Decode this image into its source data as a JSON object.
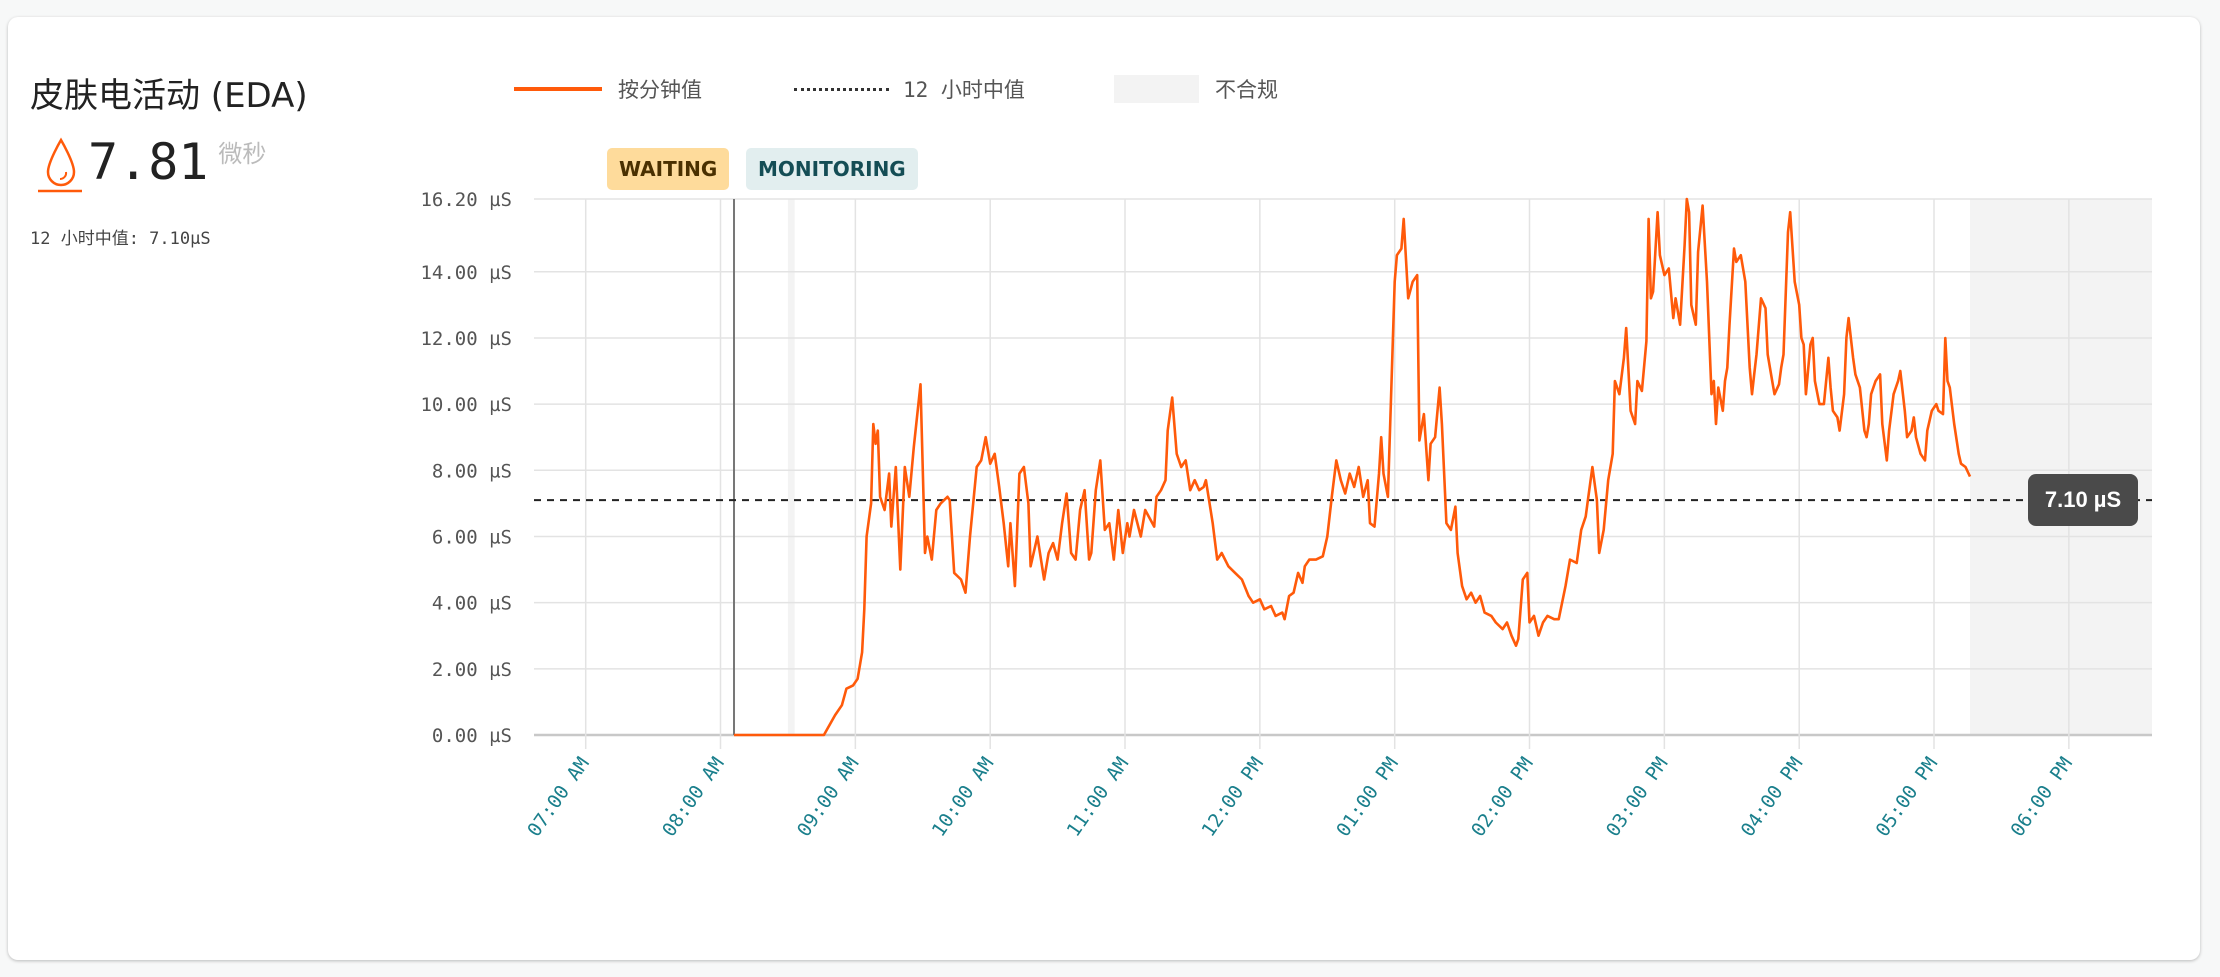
{
  "card": {
    "title": "皮肤电活动 (EDA)",
    "current_value": "7.81",
    "unit": "微秒",
    "icon": "droplet-icon",
    "median_label": "12 小时中值: 7.10μS"
  },
  "legend": {
    "per_minute": "按分钟值",
    "median": "12 小时中值",
    "non_compliant": "不合规"
  },
  "badges": {
    "waiting": "WAITING",
    "monitoring": "MONITORING"
  },
  "colors": {
    "series": "#ff5a0a",
    "waiting_bg": "#fedb9b",
    "waiting_text": "#4a3000",
    "monitoring_bg": "#e2eeef",
    "monitoring_text": "#144d55",
    "non_compliant_bg": "#f3f3f3",
    "x_tick_text": "#1a7f8c"
  },
  "tooltip": "7.10 µS",
  "chart_data": {
    "type": "line",
    "xlim": [
      "06:37",
      "18:37"
    ],
    "ylim": [
      0,
      16.2
    ],
    "grid": true,
    "legend_placement": "top",
    "y_ticks": [
      "0.00 µS",
      "2.00 µS",
      "4.00 µS",
      "6.00 µS",
      "8.00 µS",
      "10.00 µS",
      "12.00 µS",
      "14.00 µS",
      "16.20 µS"
    ],
    "y_tick_values": [
      0,
      2,
      4,
      6,
      8,
      10,
      12,
      14,
      16.2
    ],
    "x_ticks": [
      "07:00 AM",
      "08:00 AM",
      "09:00 AM",
      "10:00 AM",
      "11:00 AM",
      "12:00 PM",
      "01:00 PM",
      "02:00 PM",
      "03:00 PM",
      "04:00 PM",
      "05:00 PM",
      "06:00 PM"
    ],
    "x_tick_values": [
      "07:00",
      "08:00",
      "09:00",
      "10:00",
      "11:00",
      "12:00",
      "13:00",
      "14:00",
      "15:00",
      "16:00",
      "17:00",
      "18:00"
    ],
    "median": 7.1,
    "marker_time": "08:06",
    "gap_band": [
      "08:30",
      "08:33"
    ],
    "non_compliant_range": [
      "17:16",
      "18:37"
    ],
    "series": [
      {
        "name": "按分钟值",
        "points": [
          [
            "08:06",
            0
          ],
          [
            "08:46",
            0
          ],
          [
            "08:51",
            0.6
          ],
          [
            "08:54",
            0.9
          ],
          [
            "08:56",
            1.4
          ],
          [
            "08:59",
            1.5
          ],
          [
            "09:01",
            1.7
          ],
          [
            "09:03",
            2.5
          ],
          [
            "09:04",
            3.8
          ],
          [
            "09:05",
            6.0
          ],
          [
            "09:07",
            7.0
          ],
          [
            "09:08",
            9.4
          ],
          [
            "09:09",
            8.8
          ],
          [
            "09:10",
            9.2
          ],
          [
            "09:11",
            7.2
          ],
          [
            "09:13",
            6.8
          ],
          [
            "09:15",
            7.9
          ],
          [
            "09:16",
            6.3
          ],
          [
            "09:18",
            8.1
          ],
          [
            "09:20",
            5.0
          ],
          [
            "09:22",
            8.1
          ],
          [
            "09:24",
            7.2
          ],
          [
            "09:26",
            8.7
          ],
          [
            "09:29",
            10.6
          ],
          [
            "09:31",
            5.5
          ],
          [
            "09:32",
            6.0
          ],
          [
            "09:34",
            5.3
          ],
          [
            "09:36",
            6.8
          ],
          [
            "09:38",
            7.0
          ],
          [
            "09:41",
            7.2
          ],
          [
            "09:42",
            7.1
          ],
          [
            "09:44",
            4.9
          ],
          [
            "09:47",
            4.7
          ],
          [
            "09:49",
            4.3
          ],
          [
            "09:51",
            6.0
          ],
          [
            "09:54",
            8.1
          ],
          [
            "09:56",
            8.3
          ],
          [
            "09:58",
            9.0
          ],
          [
            "10:00",
            8.2
          ],
          [
            "10:02",
            8.5
          ],
          [
            "10:04",
            7.5
          ],
          [
            "10:06",
            6.4
          ],
          [
            "10:08",
            5.1
          ],
          [
            "10:09",
            6.4
          ],
          [
            "10:11",
            4.5
          ],
          [
            "10:13",
            7.9
          ],
          [
            "10:15",
            8.1
          ],
          [
            "10:17",
            7.0
          ],
          [
            "10:18",
            5.1
          ],
          [
            "10:21",
            6.0
          ],
          [
            "10:24",
            4.7
          ],
          [
            "10:26",
            5.5
          ],
          [
            "10:28",
            5.8
          ],
          [
            "10:30",
            5.3
          ],
          [
            "10:32",
            6.4
          ],
          [
            "10:34",
            7.3
          ],
          [
            "10:36",
            5.5
          ],
          [
            "10:38",
            5.3
          ],
          [
            "10:40",
            6.8
          ],
          [
            "10:42",
            7.4
          ],
          [
            "10:44",
            5.3
          ],
          [
            "10:45",
            5.5
          ],
          [
            "10:47",
            7.4
          ],
          [
            "10:49",
            8.3
          ],
          [
            "10:51",
            6.2
          ],
          [
            "10:53",
            6.4
          ],
          [
            "10:55",
            5.3
          ],
          [
            "10:57",
            6.8
          ],
          [
            "10:59",
            5.5
          ],
          [
            "11:01",
            6.4
          ],
          [
            "11:02",
            6.0
          ],
          [
            "11:04",
            6.8
          ],
          [
            "11:07",
            6.0
          ],
          [
            "11:09",
            6.8
          ],
          [
            "11:13",
            6.3
          ],
          [
            "11:14",
            7.2
          ],
          [
            "11:16",
            7.4
          ],
          [
            "11:18",
            7.7
          ],
          [
            "11:19",
            9.2
          ],
          [
            "11:21",
            10.2
          ],
          [
            "11:23",
            8.5
          ],
          [
            "11:25",
            8.1
          ],
          [
            "11:27",
            8.3
          ],
          [
            "11:29",
            7.4
          ],
          [
            "11:31",
            7.7
          ],
          [
            "11:33",
            7.4
          ],
          [
            "11:35",
            7.5
          ],
          [
            "11:36",
            7.7
          ],
          [
            "11:39",
            6.4
          ],
          [
            "11:41",
            5.3
          ],
          [
            "11:43",
            5.5
          ],
          [
            "11:46",
            5.1
          ],
          [
            "11:49",
            4.9
          ],
          [
            "11:52",
            4.7
          ],
          [
            "11:55",
            4.2
          ],
          [
            "11:57",
            4.0
          ],
          [
            "12:00",
            4.1
          ],
          [
            "12:02",
            3.8
          ],
          [
            "12:05",
            3.9
          ],
          [
            "12:07",
            3.6
          ],
          [
            "12:10",
            3.7
          ],
          [
            "12:11",
            3.5
          ],
          [
            "12:13",
            4.2
          ],
          [
            "12:15",
            4.3
          ],
          [
            "12:17",
            4.9
          ],
          [
            "12:19",
            4.6
          ],
          [
            "12:20",
            5.1
          ],
          [
            "12:22",
            5.3
          ],
          [
            "12:25",
            5.3
          ],
          [
            "12:28",
            5.4
          ],
          [
            "12:30",
            6.0
          ],
          [
            "12:32",
            7.2
          ],
          [
            "12:34",
            8.3
          ],
          [
            "12:36",
            7.7
          ],
          [
            "12:38",
            7.3
          ],
          [
            "12:40",
            7.9
          ],
          [
            "12:42",
            7.5
          ],
          [
            "12:44",
            8.1
          ],
          [
            "12:46",
            7.2
          ],
          [
            "12:48",
            7.7
          ],
          [
            "12:49",
            6.4
          ],
          [
            "12:51",
            6.3
          ],
          [
            "12:53",
            7.9
          ],
          [
            "12:54",
            9.0
          ],
          [
            "12:55",
            7.9
          ],
          [
            "12:57",
            7.2
          ],
          [
            "12:58",
            9.4
          ],
          [
            "13:00",
            13.7
          ],
          [
            "13:01",
            14.5
          ],
          [
            "13:03",
            14.7
          ],
          [
            "13:04",
            15.6
          ],
          [
            "13:06",
            13.2
          ],
          [
            "13:08",
            13.7
          ],
          [
            "13:10",
            13.9
          ],
          [
            "13:11",
            8.9
          ],
          [
            "13:13",
            9.7
          ],
          [
            "13:15",
            7.7
          ],
          [
            "13:16",
            8.8
          ],
          [
            "13:18",
            9.0
          ],
          [
            "13:20",
            10.5
          ],
          [
            "13:21",
            9.4
          ],
          [
            "13:23",
            6.4
          ],
          [
            "13:25",
            6.2
          ],
          [
            "13:27",
            6.9
          ],
          [
            "13:28",
            5.5
          ],
          [
            "13:30",
            4.5
          ],
          [
            "13:32",
            4.1
          ],
          [
            "13:34",
            4.3
          ],
          [
            "13:36",
            4.0
          ],
          [
            "13:38",
            4.2
          ],
          [
            "13:40",
            3.7
          ],
          [
            "13:43",
            3.6
          ],
          [
            "13:45",
            3.4
          ],
          [
            "13:48",
            3.2
          ],
          [
            "13:50",
            3.4
          ],
          [
            "13:52",
            3.0
          ],
          [
            "13:54",
            2.7
          ],
          [
            "13:55",
            2.9
          ],
          [
            "13:57",
            4.7
          ],
          [
            "13:59",
            4.9
          ],
          [
            "14:00",
            3.4
          ],
          [
            "14:02",
            3.6
          ],
          [
            "14:04",
            3.0
          ],
          [
            "14:06",
            3.4
          ],
          [
            "14:08",
            3.6
          ],
          [
            "14:11",
            3.5
          ],
          [
            "14:13",
            3.5
          ],
          [
            "14:16",
            4.5
          ],
          [
            "14:18",
            5.3
          ],
          [
            "14:21",
            5.2
          ],
          [
            "14:23",
            6.2
          ],
          [
            "14:25",
            6.6
          ],
          [
            "14:26",
            7.1
          ],
          [
            "14:28",
            8.1
          ],
          [
            "14:30",
            7.1
          ],
          [
            "14:31",
            5.5
          ],
          [
            "14:33",
            6.2
          ],
          [
            "14:35",
            7.7
          ],
          [
            "14:37",
            8.5
          ],
          [
            "14:38",
            10.7
          ],
          [
            "14:40",
            10.3
          ],
          [
            "14:42",
            11.4
          ],
          [
            "14:43",
            12.3
          ],
          [
            "14:45",
            9.8
          ],
          [
            "14:47",
            9.4
          ],
          [
            "14:48",
            10.7
          ],
          [
            "14:50",
            10.4
          ],
          [
            "14:52",
            11.9
          ],
          [
            "14:53",
            15.6
          ],
          [
            "14:54",
            13.2
          ],
          [
            "14:55",
            13.4
          ],
          [
            "14:57",
            15.8
          ],
          [
            "14:58",
            14.5
          ],
          [
            "15:00",
            13.9
          ],
          [
            "15:02",
            14.1
          ],
          [
            "15:04",
            12.6
          ],
          [
            "15:05",
            13.2
          ],
          [
            "15:07",
            12.4
          ],
          [
            "15:09",
            14.8
          ],
          [
            "15:10",
            16.2
          ],
          [
            "15:11",
            15.8
          ],
          [
            "15:12",
            13.0
          ],
          [
            "15:14",
            12.4
          ],
          [
            "15:15",
            14.6
          ],
          [
            "15:17",
            16.0
          ],
          [
            "15:19",
            13.7
          ],
          [
            "15:21",
            10.3
          ],
          [
            "15:22",
            10.7
          ],
          [
            "15:23",
            9.4
          ],
          [
            "15:24",
            10.5
          ],
          [
            "15:26",
            9.8
          ],
          [
            "15:27",
            10.7
          ],
          [
            "15:28",
            11.1
          ],
          [
            "15:29",
            12.4
          ],
          [
            "15:31",
            14.7
          ],
          [
            "15:32",
            14.3
          ],
          [
            "15:34",
            14.5
          ],
          [
            "15:36",
            13.7
          ],
          [
            "15:38",
            11.1
          ],
          [
            "15:39",
            10.3
          ],
          [
            "15:40",
            10.9
          ],
          [
            "15:41",
            11.5
          ],
          [
            "15:43",
            13.2
          ],
          [
            "15:45",
            12.9
          ],
          [
            "15:46",
            11.5
          ],
          [
            "15:48",
            10.7
          ],
          [
            "15:49",
            10.3
          ],
          [
            "15:51",
            10.6
          ],
          [
            "15:52",
            11.1
          ],
          [
            "15:53",
            11.5
          ],
          [
            "15:55",
            15.2
          ],
          [
            "15:56",
            15.8
          ],
          [
            "15:58",
            13.7
          ],
          [
            "16:00",
            13.0
          ],
          [
            "16:01",
            12.0
          ],
          [
            "16:02",
            11.8
          ],
          [
            "16:03",
            10.3
          ],
          [
            "16:05",
            11.8
          ],
          [
            "16:06",
            12.0
          ],
          [
            "16:07",
            10.7
          ],
          [
            "16:09",
            10.0
          ],
          [
            "16:11",
            10.0
          ],
          [
            "16:13",
            11.4
          ],
          [
            "16:14",
            10.5
          ],
          [
            "16:15",
            9.8
          ],
          [
            "16:17",
            9.6
          ],
          [
            "16:18",
            9.2
          ],
          [
            "16:20",
            10.3
          ],
          [
            "16:21",
            12.0
          ],
          [
            "16:22",
            12.6
          ],
          [
            "16:24",
            11.4
          ],
          [
            "16:25",
            10.9
          ],
          [
            "16:27",
            10.5
          ],
          [
            "16:29",
            9.2
          ],
          [
            "16:30",
            9.0
          ],
          [
            "16:31",
            9.4
          ],
          [
            "16:32",
            10.3
          ],
          [
            "16:34",
            10.7
          ],
          [
            "16:36",
            10.9
          ],
          [
            "16:37",
            9.4
          ],
          [
            "16:39",
            8.3
          ],
          [
            "16:40",
            9.2
          ],
          [
            "16:42",
            10.3
          ],
          [
            "16:44",
            10.7
          ],
          [
            "16:45",
            11.0
          ],
          [
            "16:47",
            9.8
          ],
          [
            "16:48",
            9.0
          ],
          [
            "16:50",
            9.2
          ],
          [
            "16:51",
            9.6
          ],
          [
            "16:52",
            9.0
          ],
          [
            "16:54",
            8.5
          ],
          [
            "16:56",
            8.3
          ],
          [
            "16:57",
            9.2
          ],
          [
            "16:59",
            9.8
          ],
          [
            "17:01",
            10.0
          ],
          [
            "17:02",
            9.8
          ],
          [
            "17:04",
            9.7
          ],
          [
            "17:05",
            12.0
          ],
          [
            "17:06",
            10.7
          ],
          [
            "17:07",
            10.5
          ],
          [
            "17:09",
            9.4
          ],
          [
            "17:11",
            8.5
          ],
          [
            "17:12",
            8.2
          ],
          [
            "17:14",
            8.1
          ],
          [
            "17:16",
            7.81
          ]
        ]
      }
    ]
  }
}
